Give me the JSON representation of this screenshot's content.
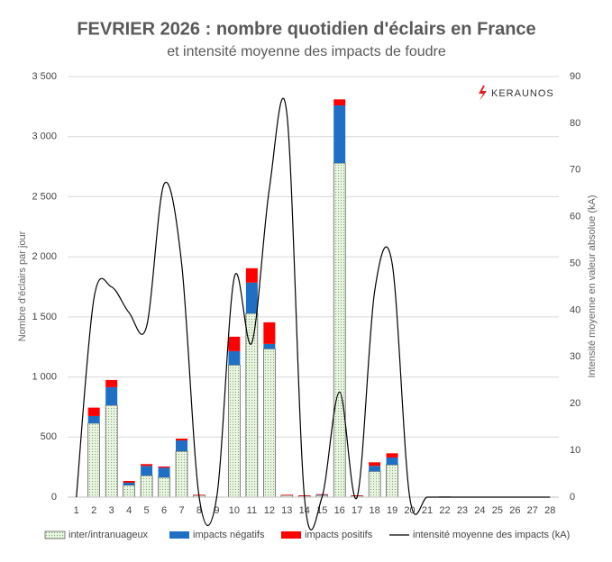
{
  "chart_data": {
    "type": "bar",
    "title": "FEVRIER 2026 : nombre quotidien d'éclairs en France",
    "subtitle": "et intensité moyenne des impacts de foudre",
    "brand": "KERAUNOS",
    "y_label": "Nombre d'éclairs par jour",
    "y2_label": "Intensité moyenne en valeur absolue (kA)",
    "categories": [
      "1",
      "2",
      "3",
      "4",
      "5",
      "6",
      "7",
      "8",
      "9",
      "10",
      "11",
      "12",
      "13",
      "14",
      "15",
      "16",
      "17",
      "18",
      "19",
      "20",
      "21",
      "22",
      "23",
      "24",
      "25",
      "26",
      "27",
      "28"
    ],
    "series": [
      {
        "name": "inter/intranuageux",
        "color": "#d9ead3",
        "values": [
          0,
          615,
          765,
          100,
          180,
          165,
          382,
          15,
          0,
          1100,
          1530,
          1235,
          15,
          10,
          15,
          2780,
          10,
          215,
          270,
          0,
          0,
          3,
          0,
          0,
          0,
          0,
          0,
          0
        ]
      },
      {
        "name": "impacts négatifs",
        "color": "#1f6fc5",
        "values": [
          0,
          60,
          150,
          20,
          80,
          80,
          90,
          0,
          0,
          115,
          255,
          40,
          0,
          0,
          5,
          480,
          0,
          45,
          60,
          0,
          0,
          0,
          0,
          0,
          0,
          0,
          0,
          0
        ]
      },
      {
        "name": "impacts positifs",
        "color": "#ff0000",
        "values": [
          0,
          70,
          60,
          15,
          15,
          10,
          15,
          5,
          0,
          120,
          120,
          180,
          5,
          5,
          5,
          50,
          5,
          30,
          35,
          0,
          0,
          0,
          0,
          0,
          0,
          0,
          0,
          0
        ]
      },
      {
        "name": "intensité moyenne des impacts (kA)",
        "color": "#000000",
        "axis": "y2",
        "type": "line",
        "values": [
          0,
          42.5,
          45,
          39.5,
          36.5,
          67,
          50,
          0,
          0,
          47,
          33,
          66,
          82,
          0,
          0,
          22.5,
          0,
          44,
          50,
          0,
          0,
          0,
          0,
          0,
          0,
          0,
          0,
          0
        ]
      }
    ],
    "ylim": [
      0,
      3500
    ],
    "yticks": [
      0,
      {
        "value": 500,
        "label": "500"
      },
      {
        "value": 1000,
        "label": "1 000"
      },
      {
        "value": 1500,
        "label": "1 500"
      },
      {
        "value": 2000,
        "label": "2 000"
      },
      {
        "value": 2500,
        "label": "2 500"
      },
      {
        "value": 3000,
        "label": "3 000"
      },
      {
        "value": 3500,
        "label": "3 500"
      }
    ],
    "y2lim": [
      0,
      90
    ],
    "y2ticks": [
      0,
      10,
      20,
      30,
      40,
      50,
      60,
      70,
      80,
      90
    ],
    "grid": true
  }
}
